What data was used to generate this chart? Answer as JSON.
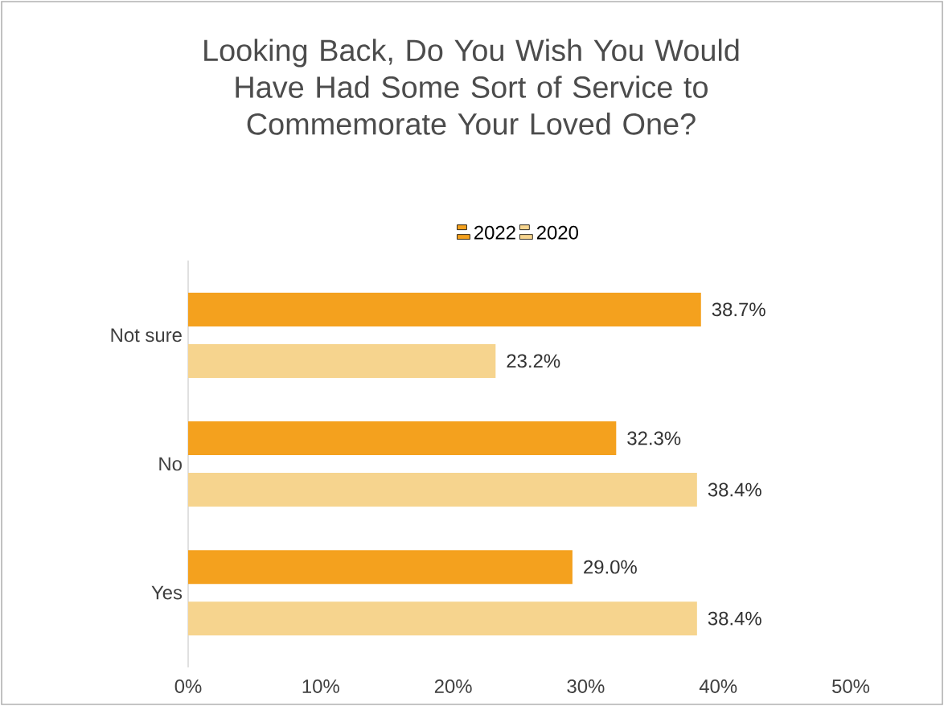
{
  "chart_data": {
    "type": "bar",
    "orientation": "horizontal",
    "title": "Looking Back, Do You Wish You Would Have Had Some Sort of Service to Commemorate Your Loved One?",
    "categories": [
      "Not sure",
      "No",
      "Yes"
    ],
    "series": [
      {
        "name": "2022",
        "color": "#f4a11e",
        "values": [
          38.7,
          32.3,
          29.0
        ],
        "value_labels": [
          "38.7%",
          "32.3%",
          "29.0%"
        ]
      },
      {
        "name": "2020",
        "color": "#f6d48e",
        "values": [
          23.2,
          38.4,
          38.4
        ],
        "value_labels": [
          "23.2%",
          "38.4%",
          "38.4%"
        ]
      }
    ],
    "xlim": [
      0,
      50
    ],
    "xticks": [
      {
        "value": 0,
        "label": "0%"
      },
      {
        "value": 10,
        "label": "10%"
      },
      {
        "value": 20,
        "label": "20%"
      },
      {
        "value": 30,
        "label": "30%"
      },
      {
        "value": 40,
        "label": "40%"
      },
      {
        "value": 50,
        "label": "50%"
      }
    ],
    "legend": "top",
    "grid": false
  }
}
